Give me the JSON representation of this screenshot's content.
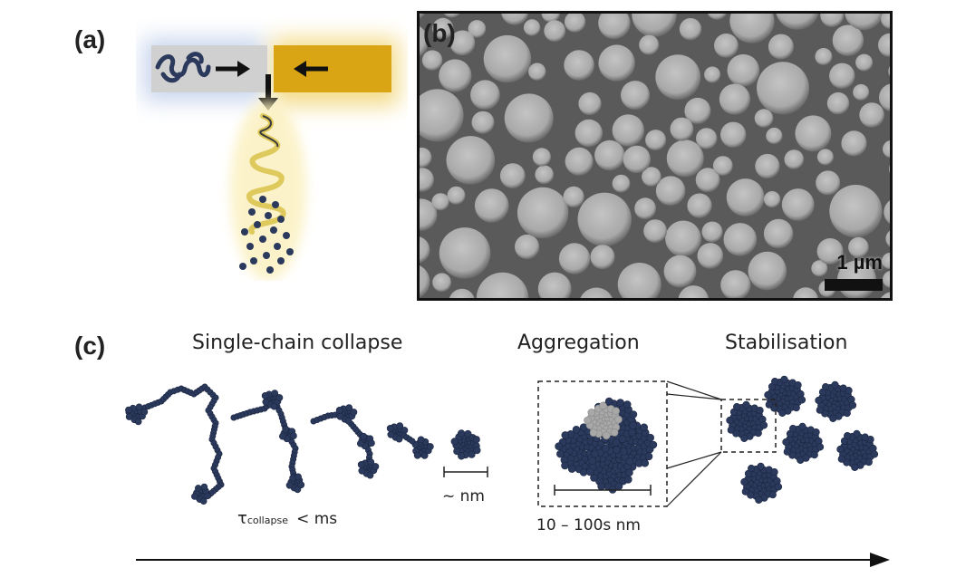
{
  "panel_labels": {
    "a": "(a)",
    "b": "(b)",
    "c": "(c)"
  },
  "scale_bar": {
    "label": "1 µm"
  },
  "stages": {
    "collapse": "Single-chain collapse",
    "aggregation": "Aggregation",
    "stabilisation": "Stabilisation"
  },
  "annotations": {
    "tau_symbol": "τ",
    "tau_subscript": "collapse",
    "tau_value": "< ms",
    "particle_size": "~ nm",
    "aggregate_size": "10 – 100s nm"
  },
  "colors": {
    "polymer": "#2b3a5c",
    "antisolvent": "#d9a514",
    "arrow": "#111111"
  }
}
